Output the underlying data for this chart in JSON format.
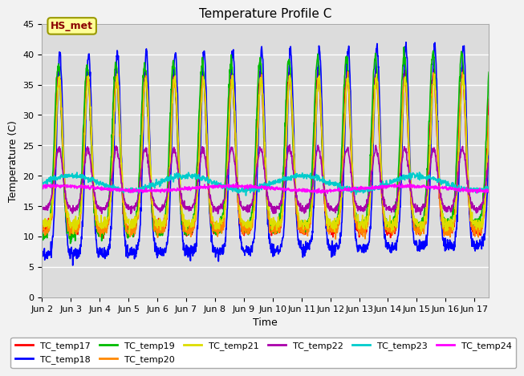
{
  "title": "Temperature Profile C",
  "xlabel": "Time",
  "ylabel": "Temperature (C)",
  "ylim": [
    0,
    45
  ],
  "annotation_text": "HS_met",
  "annotation_color": "#8B0000",
  "annotation_bg": "#FFFF99",
  "annotation_edge": "#999900",
  "plot_bg": "#DCDCDC",
  "fig_bg": "#F2F2F2",
  "grid_color": "white",
  "series_colors": [
    "#FF0000",
    "#0000FF",
    "#00BB00",
    "#FF8800",
    "#DDDD00",
    "#AA00AA",
    "#00CCCC",
    "#FF00FF"
  ],
  "series_names": [
    "TC_temp17",
    "TC_temp18",
    "TC_temp19",
    "TC_temp20",
    "TC_temp21",
    "TC_temp22",
    "TC_temp23",
    "TC_temp24"
  ],
  "xtick_labels": [
    "Jun 2",
    "Jun 3",
    "Jun 4",
    "Jun 5",
    "Jun 6",
    "Jun 7",
    "Jun 8",
    "Jun 9",
    "Jun 10",
    "Jun 11",
    "Jun 12",
    "Jun 13",
    "Jun 14",
    "Jun 15",
    "Jun 16",
    "Jun 17"
  ],
  "title_fontsize": 11,
  "axis_fontsize": 9,
  "tick_fontsize": 8,
  "legend_fontsize": 8,
  "lw": 1.2
}
